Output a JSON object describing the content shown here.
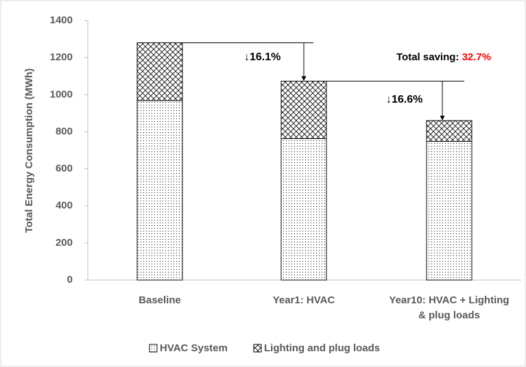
{
  "chart_data": {
    "type": "stacked_bar",
    "y_label": "Total Energy Consumption (MWh)",
    "categories": [
      "Baseline",
      "Year1: HVAC",
      "Year10: HVAC + Lighting & plug loads"
    ],
    "series": [
      {
        "name": "HVAC System",
        "color": "#000000",
        "pattern": "dots",
        "values": [
          968,
          763,
          748
        ]
      },
      {
        "name": "Lighting and plug loads",
        "color": "#000000",
        "pattern": "crosshatch",
        "values": [
          312,
          310,
          112
        ]
      }
    ],
    "ylim": [
      0,
      1400
    ],
    "yticks": [
      0,
      200,
      400,
      600,
      800,
      1000,
      1200,
      1400
    ],
    "annotations": [
      {
        "text": "↓16.1%"
      },
      {
        "text": "↓16.6%"
      },
      {
        "text": "Total saving:",
        "highlight": "32.7%",
        "highlight_color": "#ff0000"
      }
    ],
    "legend": "bottom"
  }
}
